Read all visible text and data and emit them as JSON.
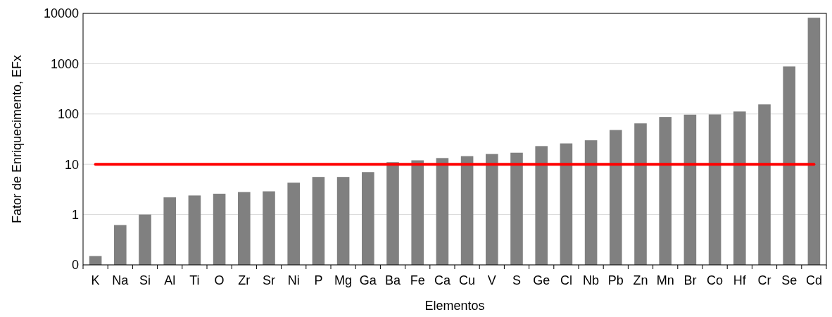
{
  "chart_data": {
    "type": "bar",
    "xlabel": "Elementos",
    "ylabel": "Fator de Enriquecimento, EFx",
    "categories": [
      "K",
      "Na",
      "Si",
      "Al",
      "Ti",
      "O",
      "Zr",
      "Sr",
      "Ni",
      "P",
      "Mg",
      "Ga",
      "Ba",
      "Fe",
      "Ca",
      "Cu",
      "V",
      "S",
      "Ge",
      "Cl",
      "Nb",
      "Pb",
      "Zn",
      "Mn",
      "Br",
      "Co",
      "Hf",
      "Cr",
      "Se",
      "Cd"
    ],
    "values": [
      0.15,
      0.62,
      1.0,
      2.2,
      2.4,
      2.6,
      2.8,
      2.9,
      4.3,
      5.6,
      5.6,
      7.0,
      11,
      12,
      13.3,
      14.5,
      16,
      17,
      23,
      26,
      30,
      48,
      65,
      87,
      97,
      98,
      112,
      155,
      880,
      8200
    ],
    "color": "#808080",
    "log": true,
    "ylim": [
      0.1,
      10000
    ],
    "yticks": [
      {
        "value": 0.1,
        "label": "0"
      },
      1,
      10,
      100,
      1000,
      10000
    ],
    "grid": "y",
    "ref_lines": [
      {
        "axis": "y",
        "value": 10,
        "color": "#ff0000"
      }
    ]
  }
}
